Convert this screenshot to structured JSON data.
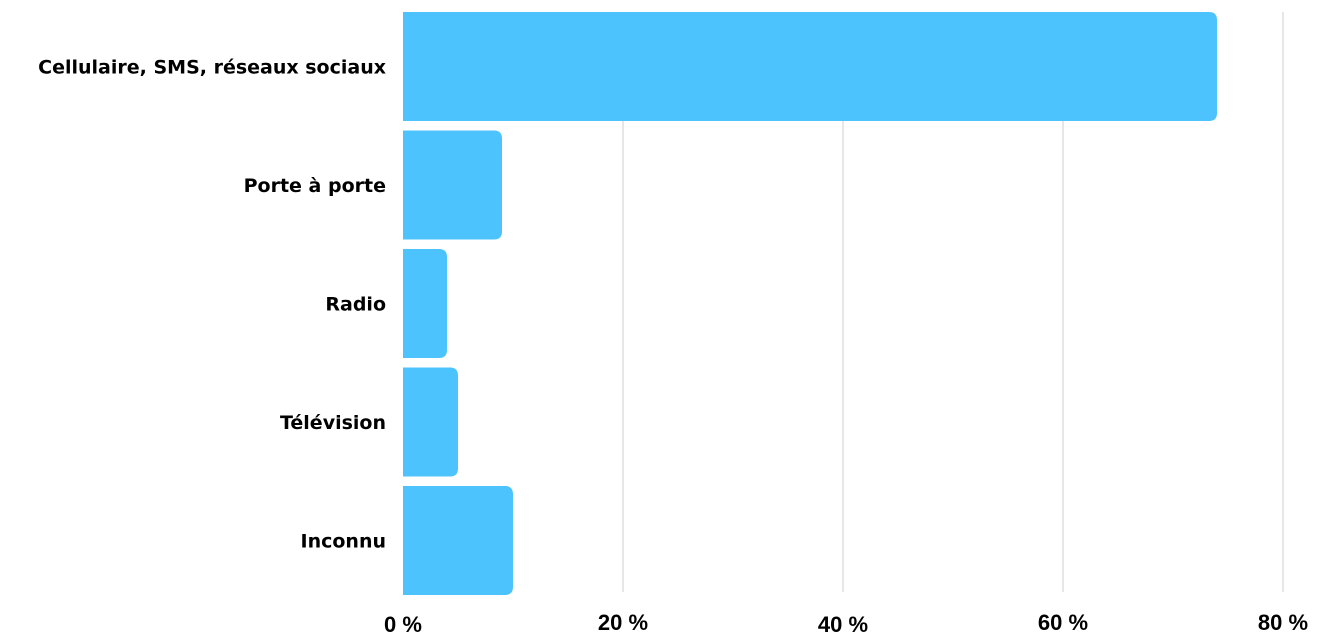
{
  "chart_data": {
    "type": "bar",
    "orientation": "horizontal",
    "categories": [
      "Cellulaire, SMS, réseaux sociaux",
      "Porte à porte",
      "Radio",
      "Télévision",
      "Inconnu"
    ],
    "values": [
      74,
      9,
      4,
      5,
      10
    ],
    "x_ticks": [
      "0 %",
      "20 %",
      "40 %",
      "60 %",
      "80 %"
    ],
    "xlim": [
      0,
      80
    ],
    "grid": true,
    "legend": "none",
    "bar_color": "#4cc3fd",
    "grid_color": "#cfcfcf"
  }
}
